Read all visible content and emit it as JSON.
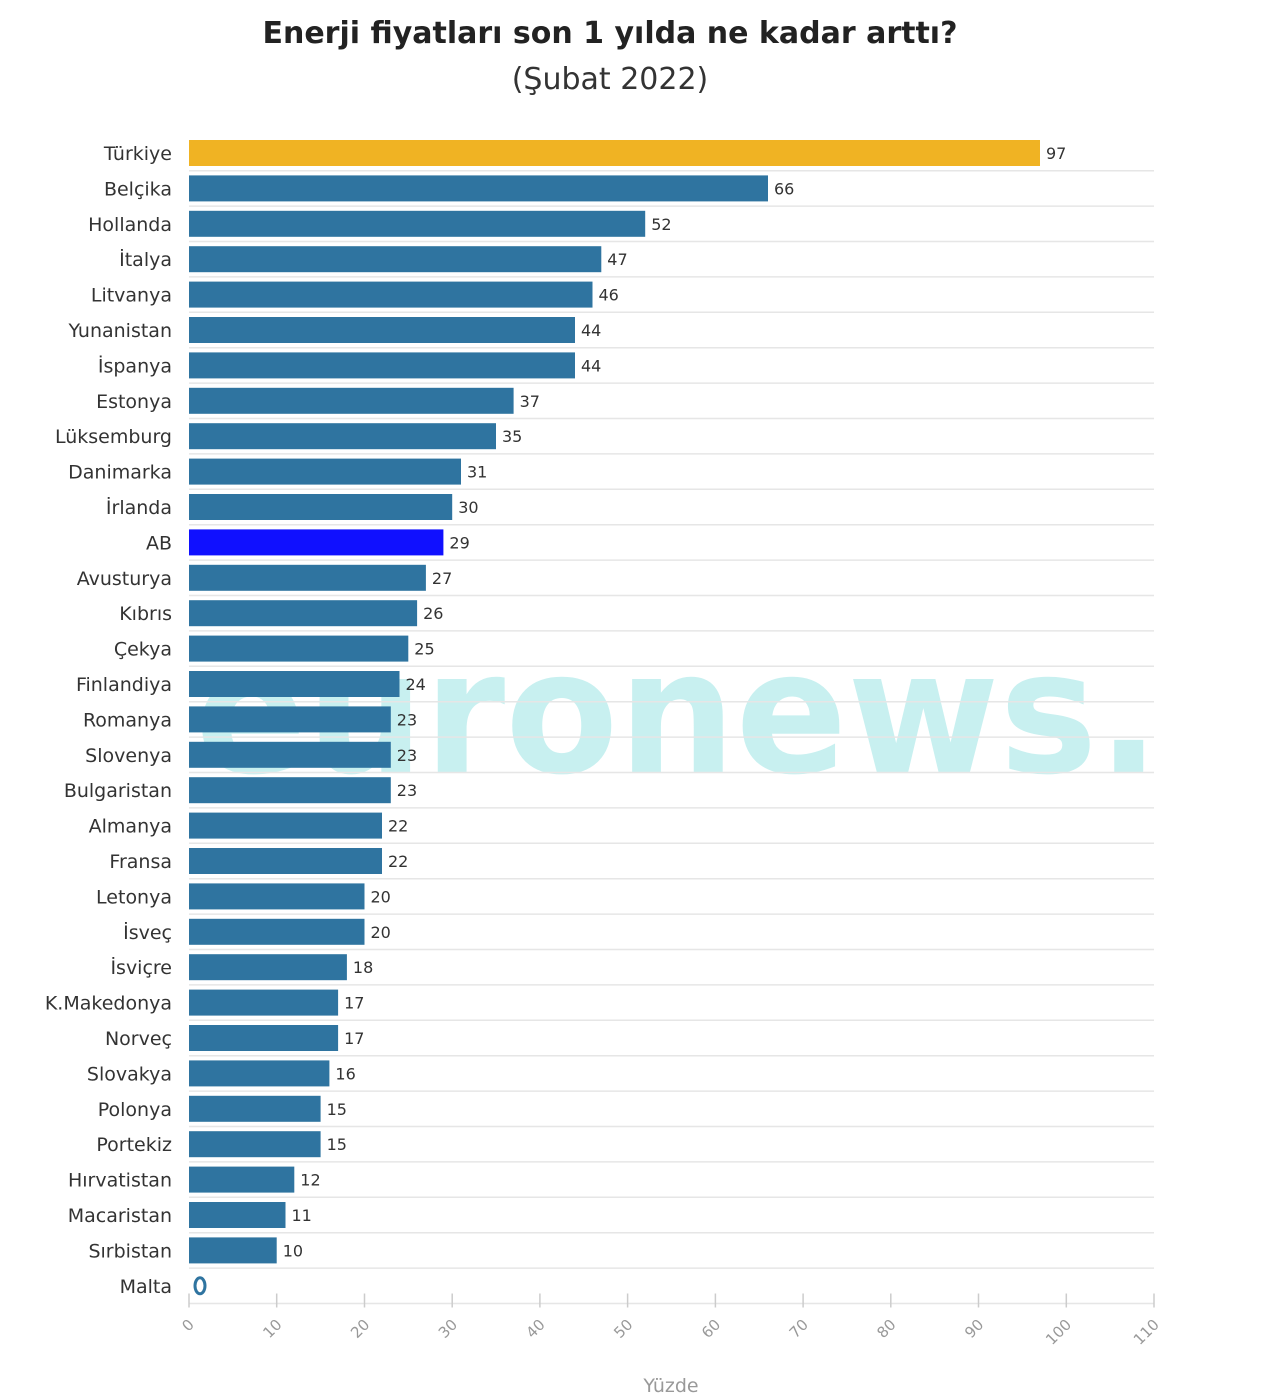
{
  "chart_data": {
    "type": "bar",
    "orientation": "horizontal",
    "title": "Enerji fiyatları son 1 yılda ne kadar arttı?",
    "subtitle": "(Şubat 2022)",
    "xlabel": "Yüzde",
    "ylabel": "",
    "xlim": [
      0,
      110
    ],
    "xticks": [
      "0",
      "10",
      "20",
      "30",
      "40",
      "50",
      "60",
      "70",
      "80",
      "90",
      "100",
      "110"
    ],
    "grid": true,
    "categories": [
      "Türkiye",
      "Belçika",
      "Hollanda",
      "İtalya",
      "Litvanya",
      "Yunanistan",
      "İspanya",
      "Estonya",
      "Lüksemburg",
      "Danimarka",
      "İrlanda",
      "AB",
      "Avusturya",
      "Kıbrıs",
      "Çekya",
      "Finlandiya",
      "Romanya",
      "Slovenya",
      "Bulgaristan",
      "Almanya",
      "Fransa",
      "Letonya",
      "İsveç",
      "İsviçre",
      "K.Makedonya",
      "Norveç",
      "Slovakya",
      "Polonya",
      "Portekiz",
      "Hırvatistan",
      "Macaristan",
      "Sırbistan",
      "Malta"
    ],
    "values": [
      97,
      66,
      52,
      47,
      46,
      44,
      44,
      37,
      35,
      31,
      30,
      29,
      27,
      26,
      25,
      24,
      23,
      23,
      23,
      22,
      22,
      20,
      20,
      18,
      17,
      17,
      16,
      15,
      15,
      12,
      11,
      10,
      0
    ],
    "data_labels": [
      "97",
      "66",
      "52",
      "47",
      "46",
      "44",
      "44",
      "37",
      "35",
      "31",
      "30",
      "29",
      "27",
      "26",
      "25",
      "24",
      "23",
      "23",
      "23",
      "22",
      "22",
      "20",
      "20",
      "18",
      "17",
      "17",
      "16",
      "15",
      "15",
      "12",
      "11",
      "10",
      "0"
    ],
    "colors": {
      "default": "#2f74a0",
      "highlight_turkiye": "#f0b323",
      "highlight_ab": "#1010ff",
      "grid": "#e6e6e6",
      "watermark": "#bfeeee"
    },
    "highlights": {
      "Türkiye": "highlight_turkiye",
      "AB": "highlight_ab"
    }
  },
  "watermark": {
    "text": "euronews."
  }
}
